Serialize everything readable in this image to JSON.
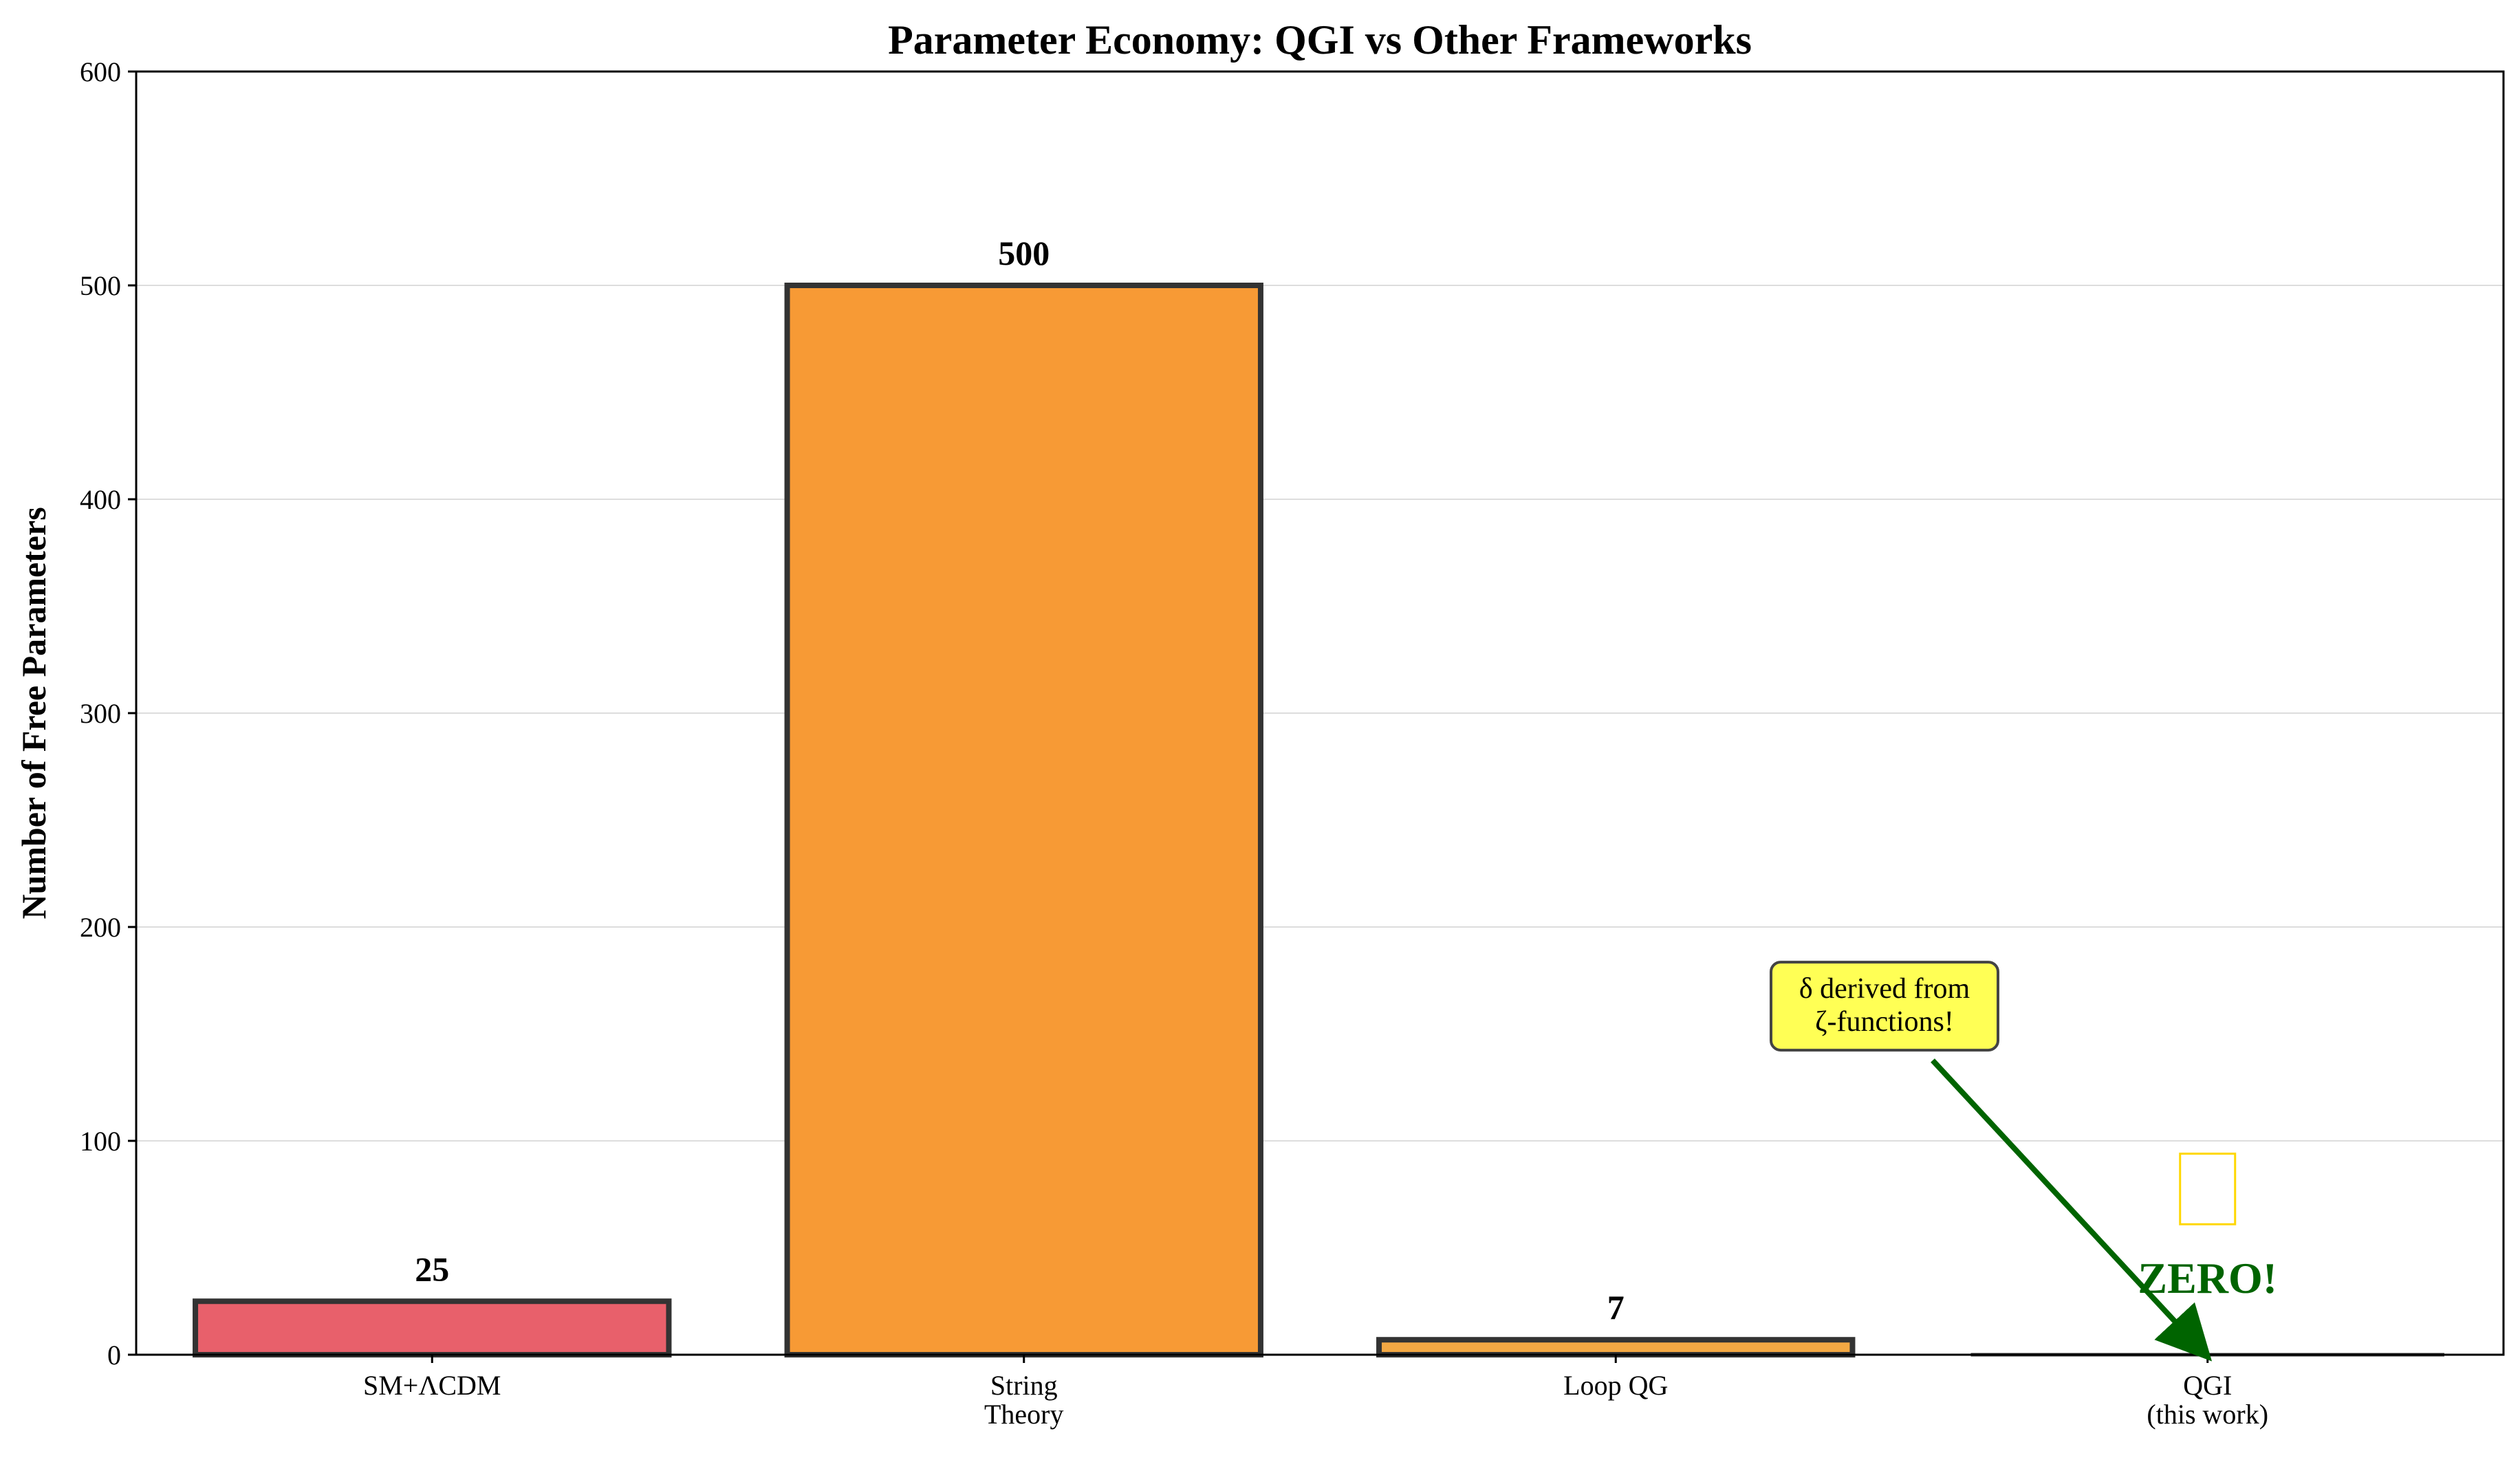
{
  "chart_data": {
    "type": "bar",
    "title": "Parameter Economy: QGI vs Other Frameworks",
    "xlabel": "",
    "ylabel": "Number of Free Parameters",
    "categories": [
      {
        "lines": [
          "SM+ΛCDM"
        ]
      },
      {
        "lines": [
          "String",
          "Theory"
        ]
      },
      {
        "lines": [
          "Loop QG"
        ]
      },
      {
        "lines": [
          "QGI",
          "(this work)"
        ]
      }
    ],
    "values": [
      25,
      500,
      7,
      0
    ],
    "value_labels": [
      "25",
      "500",
      "7",
      ""
    ],
    "colors": [
      "#e8606b",
      "#f79a35",
      "#f3a843",
      "#a9d18e"
    ],
    "edge_color": "#333333",
    "ylim": [
      0,
      600
    ],
    "yticks": [
      0,
      100,
      200,
      300,
      400,
      500,
      600
    ],
    "ytick_labels": [
      "0",
      "100",
      "200",
      "300",
      "400",
      "500",
      "600"
    ],
    "grid": "horizontal",
    "annotations": {
      "zero_label": "ZERO!",
      "zero_label_value": 36,
      "zero_color": "#006400",
      "callout_lines": [
        "δ derived from",
        "ζ-functions!"
      ],
      "callout_bg": "#ffff55",
      "callout_value": 163,
      "arrow_target_value": 0,
      "box_outline_color": "#ffd700",
      "box_value_range": [
        61,
        94
      ]
    }
  }
}
